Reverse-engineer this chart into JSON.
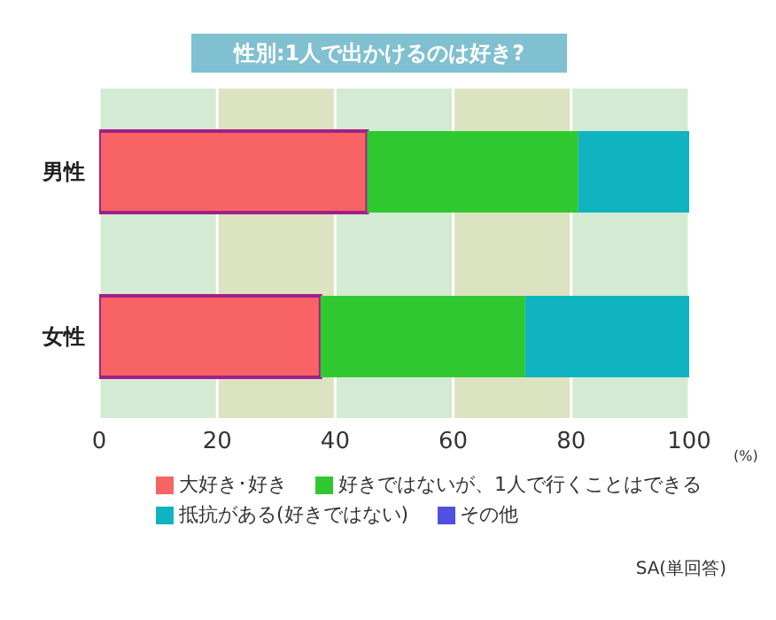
{
  "chart_data": {
    "type": "bar",
    "orientation": "horizontal",
    "stacked": true,
    "title": "性別:1人で出かけるのは好き?",
    "xlabel": "(%)",
    "categories": [
      "男性",
      "女性"
    ],
    "series": [
      {
        "name": "大好き･好き",
        "color": "#f86464",
        "values": [
          45.4,
          37.5
        ]
      },
      {
        "name": "好きではないが、1人で行くことはできる",
        "color": "#30c830",
        "values": [
          35.8,
          34.7
        ]
      },
      {
        "name": "抵抗がある(好きではない)",
        "color": "#10b4c0",
        "values": [
          18.8,
          27.8
        ]
      },
      {
        "name": "その他",
        "color": "#5050e0",
        "values": [
          0,
          0
        ]
      }
    ],
    "xlim": [
      0,
      100
    ],
    "xticks": [
      0,
      20,
      40,
      60,
      80,
      100
    ],
    "grid": "x",
    "legend": "bottom",
    "annotations": [
      "SA(単回答)"
    ]
  }
}
